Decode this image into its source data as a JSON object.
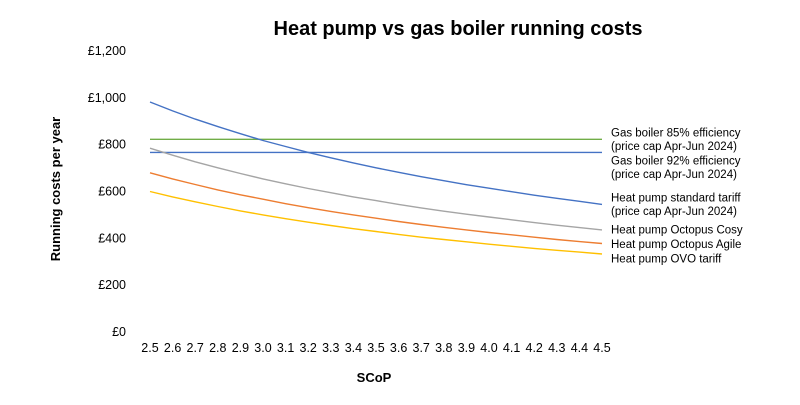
{
  "chart_data": {
    "type": "line",
    "title": "Heat pump vs gas boiler running costs",
    "xlabel": "SCoP",
    "ylabel": "Running costs per year",
    "x": [
      2.5,
      2.6,
      2.7,
      2.8,
      2.9,
      3.0,
      3.1,
      3.2,
      3.3,
      3.4,
      3.5,
      3.6,
      3.7,
      3.8,
      3.9,
      4.0,
      4.1,
      4.2,
      4.3,
      4.4,
      4.5
    ],
    "x_tick_labels": [
      "2.5",
      "2.6",
      "2.7",
      "2.8",
      "2.9",
      "3.0",
      "3.1",
      "3.2",
      "3.3",
      "3.4",
      "3.5",
      "3.6",
      "3.7",
      "3.8",
      "3.9",
      "4.0",
      "4.1",
      "4.2",
      "4.3",
      "4.4",
      "4.5"
    ],
    "ylim": [
      0,
      1200
    ],
    "y_ticks": [
      0,
      200,
      400,
      600,
      800,
      1000,
      1200
    ],
    "y_tick_labels": [
      "£0",
      "£200",
      "£400",
      "£600",
      "£800",
      "£1,000",
      "£1,200"
    ],
    "grid": false,
    "legend_placement": "right (labels at line ends)",
    "series": [
      {
        "name": "Gas boiler 85% efficiency (price cap Apr-Jun 2024)",
        "label_lines": [
          "Gas boiler 85% efficiency",
          "(price cap Apr-Jun 2024)"
        ],
        "color": "#70ad47",
        "values": [
          823,
          823,
          823,
          823,
          823,
          823,
          823,
          823,
          823,
          823,
          823,
          823,
          823,
          823,
          823,
          823,
          823,
          823,
          823,
          823,
          823
        ]
      },
      {
        "name": "Gas boiler 92% efficiency (price cap Apr-Jun 2024)",
        "label_lines": [
          "Gas boiler 92% efficiency",
          "(price cap Apr-Jun 2024)"
        ],
        "color": "#4472c4",
        "values": [
          767,
          767,
          767,
          767,
          767,
          767,
          767,
          767,
          767,
          767,
          767,
          767,
          767,
          767,
          767,
          767,
          767,
          767,
          767,
          767,
          767
        ]
      },
      {
        "name": "Heat pump standard tariff (price cap Apr-Jun 2024)",
        "label_lines": [
          "Heat pump standard tariff",
          "(price cap Apr-Jun 2024)"
        ],
        "color": "#4472c4",
        "values": [
          982,
          944,
          909,
          877,
          847,
          818,
          792,
          767,
          744,
          722,
          701,
          682,
          663,
          646,
          629,
          614,
          599,
          584,
          571,
          558,
          545
        ]
      },
      {
        "name": "Heat pump Octopus Cosy",
        "label_lines": [
          "Heat pump Octopus Cosy"
        ],
        "color": "#a5a5a5",
        "values": [
          785,
          755,
          727,
          701,
          677,
          654,
          633,
          613,
          595,
          577,
          561,
          545,
          530,
          516,
          503,
          491,
          479,
          467,
          456,
          446,
          436
        ]
      },
      {
        "name": "Heat pump Octopus Agile",
        "label_lines": [
          "Heat pump Octopus Agile"
        ],
        "color": "#ed7d31",
        "values": [
          680,
          654,
          630,
          607,
          586,
          567,
          548,
          531,
          515,
          500,
          486,
          472,
          459,
          447,
          436,
          425,
          415,
          405,
          395,
          386,
          378
        ]
      },
      {
        "name": "Heat pump OVO tariff",
        "label_lines": [
          "Heat pump OVO tariff"
        ],
        "color": "#ffc000",
        "values": [
          600,
          577,
          556,
          536,
          517,
          500,
          484,
          469,
          455,
          441,
          429,
          417,
          405,
          395,
          385,
          375,
          366,
          357,
          349,
          341,
          333
        ]
      }
    ]
  }
}
